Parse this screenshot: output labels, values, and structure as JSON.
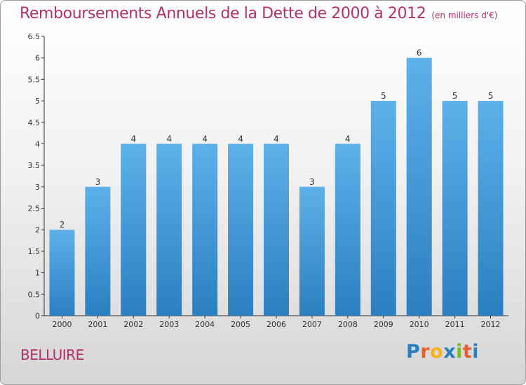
{
  "title": "Remboursements Annuels de la Dette de 2000 à 2012",
  "subtitle": "(en milliers d'€)",
  "commune": "BELLUIRE",
  "logo": {
    "letters": [
      "P",
      "r",
      "o",
      "x",
      "i",
      "t",
      "i"
    ],
    "colors": [
      "#2a7fc1",
      "#e8612c",
      "#f2b51b",
      "#2a7fc1",
      "#7ab729",
      "#e8612c",
      "#2a7fc1"
    ]
  },
  "colors": {
    "title": "#b5306b",
    "bar_top": "#5eb0ea",
    "bar_bottom": "#2c7fbf",
    "axis": "#333333"
  },
  "chart_data": {
    "type": "bar",
    "title": "Remboursements Annuels de la Dette de 2000 à 2012",
    "subtitle": "(en milliers d'€)",
    "categories": [
      "2000",
      "2001",
      "2002",
      "2003",
      "2004",
      "2005",
      "2006",
      "2007",
      "2008",
      "2009",
      "2010",
      "2011",
      "2012"
    ],
    "values": [
      2,
      3,
      4,
      4,
      4,
      4,
      4,
      3,
      4,
      5,
      6,
      5,
      5
    ],
    "data_labels": [
      "2",
      "3",
      "4",
      "4",
      "4",
      "4",
      "4",
      "3",
      "4",
      "5",
      "6",
      "5",
      "5"
    ],
    "ylim": [
      0,
      6.5
    ],
    "yticks": [
      0,
      0.5,
      1,
      1.5,
      2,
      2.5,
      3,
      3.5,
      4,
      4.5,
      5,
      5.5,
      6,
      6.5
    ],
    "ytick_labels": [
      "0",
      "0.5",
      "1",
      "1.5",
      "2",
      "2.5",
      "3",
      "3.5",
      "4",
      "4.5",
      "5",
      "5.5",
      "6",
      "6.5"
    ],
    "xlabel": "",
    "ylabel": "",
    "grid": false,
    "legend": "none"
  }
}
